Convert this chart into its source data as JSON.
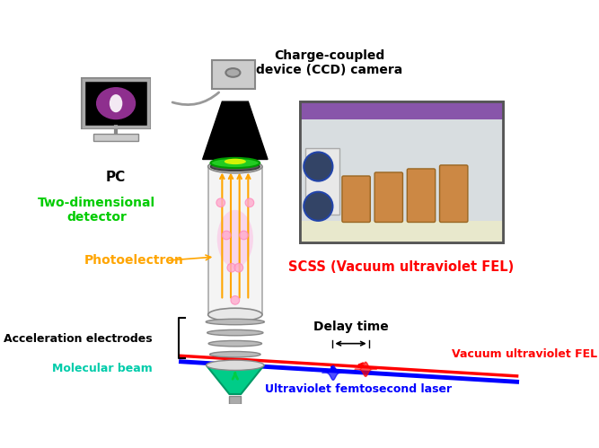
{
  "title": "",
  "bg_color": "#ffffff",
  "text_ccd": "Charge-coupled\ndevice (CCD) camera",
  "text_pc": "PC",
  "text_2d_detector": "Two-dimensional\ndetector",
  "text_photoelectron": "Photoelectron",
  "text_accel": "Acceleration electrodes",
  "text_mol_beam": "Molecular beam",
  "text_scss": "SCSS (Vacuum ultraviolet FEL)",
  "text_delay": "Delay time",
  "text_vuv_fel": "Vacuum ultraviolet FEL",
  "text_uv_laser": "Ultraviolet femtosecond laser",
  "color_green_text": "#00cc00",
  "color_orange": "#FFA500",
  "color_red": "#ff0000",
  "color_blue": "#0000ff",
  "color_black": "#000000",
  "color_cyan_text": "#00ccaa"
}
